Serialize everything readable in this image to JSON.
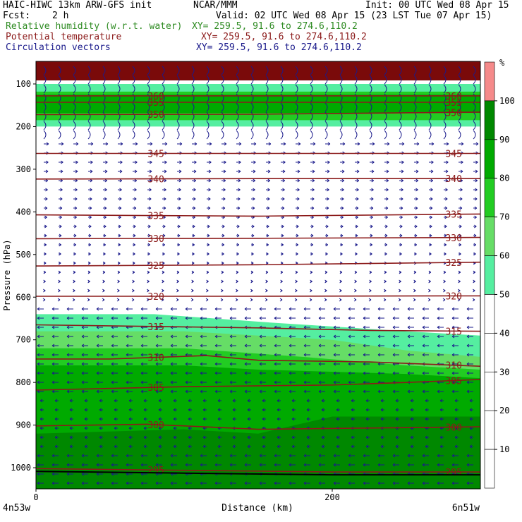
{
  "header": {
    "title_left": "HAIC-HIWC 13km ARW-GFS init",
    "title_center": "NCAR/MMM",
    "init_time": "Init: 00 UTC Wed 08 Apr 15",
    "fcst_label": "Fcst:",
    "fcst_value": "2 h",
    "valid_time": "Valid: 02 UTC Wed 08 Apr 15 (23 LST Tue 07 Apr 15)",
    "fields": [
      {
        "name": "Relative humidity (w.r.t. water)",
        "xy": "XY= 259.5, 91.6 to 274.6,110.2",
        "color": "#2e8b22"
      },
      {
        "name": "Potential temperature",
        "xy": "XY= 259.5, 91.6 to 274.6,110.2",
        "color": "#8b1a1a"
      },
      {
        "name": "Circulation vectors",
        "xy": "XY= 259.5, 91.6 to 274.6,110.2",
        "color": "#1a1a8b"
      }
    ]
  },
  "colors": {
    "theta": "#8b1a1a",
    "vector": "#1a1a8b",
    "terrain": "#000000",
    "top_band": "#7a0a0a"
  },
  "chart_data": {
    "type": "cross-section",
    "title": "",
    "ylabel": "Pressure (hPa)",
    "xlabel": "Distance (km)",
    "x_start_label": "4n53w",
    "x_end_label": "6n51w",
    "xlim": [
      0,
      300
    ],
    "ylim": [
      1050,
      60
    ],
    "y_ticks": [
      100,
      200,
      300,
      400,
      500,
      600,
      700,
      800,
      900,
      1000
    ],
    "x_ticks": [
      0,
      200
    ],
    "colorbar": {
      "unit": "%",
      "levels": [
        10,
        20,
        30,
        40,
        50,
        60,
        70,
        80,
        90,
        100
      ],
      "bands": [
        {
          "from": 100,
          "to": 110,
          "color": "#f58a8a"
        },
        {
          "from": 90,
          "to": 100,
          "color": "#008800"
        },
        {
          "from": 80,
          "to": 90,
          "color": "#00aa00"
        },
        {
          "from": 70,
          "to": 80,
          "color": "#22cc22"
        },
        {
          "from": 60,
          "to": 70,
          "color": "#66dd66"
        },
        {
          "from": 50,
          "to": 60,
          "color": "#55eea0"
        },
        {
          "from": 0,
          "to": 50,
          "color": "#ffffff"
        }
      ]
    },
    "theta_contours": [
      {
        "label": "295",
        "points": [
          [
            0,
            1002
          ],
          [
            100,
            1006
          ],
          [
            200,
            1010
          ],
          [
            300,
            1010
          ]
        ]
      },
      {
        "label": "300",
        "points": [
          [
            0,
            902
          ],
          [
            75,
            898
          ],
          [
            150,
            910
          ],
          [
            225,
            907
          ],
          [
            300,
            904
          ]
        ]
      },
      {
        "label": "305",
        "points": [
          [
            0,
            818
          ],
          [
            100,
            810
          ],
          [
            200,
            806
          ],
          [
            250,
            800
          ],
          [
            300,
            793
          ]
        ]
      },
      {
        "label": "310",
        "points": [
          [
            0,
            745
          ],
          [
            50,
            745
          ],
          [
            115,
            737
          ],
          [
            150,
            748
          ],
          [
            225,
            752
          ],
          [
            300,
            762
          ]
        ]
      },
      {
        "label": "315",
        "points": [
          [
            0,
            665
          ],
          [
            150,
            672
          ],
          [
            225,
            678
          ],
          [
            300,
            680
          ]
        ]
      },
      {
        "label": "320",
        "points": [
          [
            0,
            598
          ],
          [
            150,
            598
          ],
          [
            300,
            597
          ]
        ]
      },
      {
        "label": "325",
        "points": [
          [
            0,
            527
          ],
          [
            150,
            524
          ],
          [
            300,
            518
          ]
        ]
      },
      {
        "label": "330",
        "points": [
          [
            0,
            463
          ],
          [
            150,
            462
          ],
          [
            300,
            460
          ]
        ]
      },
      {
        "label": "335",
        "points": [
          [
            0,
            407
          ],
          [
            150,
            410
          ],
          [
            300,
            405
          ]
        ]
      },
      {
        "label": "340",
        "points": [
          [
            0,
            323
          ],
          [
            150,
            322
          ],
          [
            300,
            322
          ]
        ]
      },
      {
        "label": "345",
        "points": [
          [
            0,
            263
          ],
          [
            150,
            263
          ],
          [
            300,
            263
          ]
        ]
      },
      {
        "label": "350",
        "points": [
          [
            0,
            172
          ],
          [
            150,
            171
          ],
          [
            300,
            166
          ]
        ]
      },
      {
        "label": "355",
        "points": [
          [
            0,
            143
          ],
          [
            150,
            143
          ],
          [
            300,
            143
          ]
        ]
      },
      {
        "label": "360",
        "points": [
          [
            0,
            128
          ],
          [
            150,
            128
          ],
          [
            300,
            128
          ]
        ]
      }
    ],
    "rh_regions": [
      {
        "level": 50,
        "points": [
          [
            0,
            100
          ],
          [
            300,
            100
          ],
          [
            300,
            200
          ],
          [
            0,
            200
          ]
        ]
      },
      {
        "level": 70,
        "points": [
          [
            0,
            118
          ],
          [
            300,
            118
          ],
          [
            300,
            185
          ],
          [
            0,
            185
          ]
        ]
      },
      {
        "level": 80,
        "points": [
          [
            0,
            125
          ],
          [
            300,
            125
          ],
          [
            300,
            168
          ],
          [
            0,
            168
          ]
        ]
      },
      {
        "level": 50,
        "points": [
          [
            0,
            640
          ],
          [
            80,
            640
          ],
          [
            160,
            660
          ],
          [
            250,
            680
          ],
          [
            300,
            690
          ],
          [
            300,
            1050
          ],
          [
            0,
            1050
          ]
        ]
      },
      {
        "level": 60,
        "points": [
          [
            0,
            680
          ],
          [
            100,
            680
          ],
          [
            150,
            690
          ],
          [
            200,
            700
          ],
          [
            250,
            725
          ],
          [
            300,
            740
          ],
          [
            300,
            1050
          ],
          [
            0,
            1050
          ]
        ]
      },
      {
        "level": 70,
        "points": [
          [
            0,
            720
          ],
          [
            100,
            720
          ],
          [
            180,
            740
          ],
          [
            250,
            760
          ],
          [
            300,
            770
          ],
          [
            300,
            1050
          ],
          [
            0,
            1050
          ]
        ]
      },
      {
        "level": 80,
        "points": [
          [
            0,
            760
          ],
          [
            100,
            760
          ],
          [
            150,
            770
          ],
          [
            250,
            780
          ],
          [
            300,
            790
          ],
          [
            300,
            1050
          ],
          [
            0,
            1050
          ]
        ]
      },
      {
        "level": 90,
        "points": [
          [
            0,
            920
          ],
          [
            100,
            910
          ],
          [
            150,
            920
          ],
          [
            200,
            880
          ],
          [
            300,
            880
          ],
          [
            300,
            1050
          ],
          [
            0,
            1050
          ]
        ]
      }
    ]
  }
}
